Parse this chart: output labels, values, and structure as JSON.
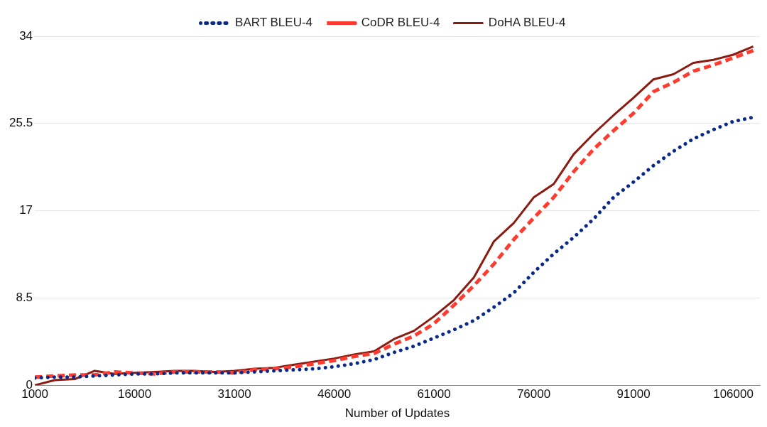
{
  "chart_data": {
    "type": "line",
    "xlabel": "Number of Updates",
    "x": [
      1000,
      4000,
      7000,
      10000,
      13000,
      16000,
      19000,
      22000,
      25000,
      28000,
      31000,
      34000,
      37000,
      40000,
      43000,
      46000,
      49000,
      52000,
      55000,
      58000,
      61000,
      64000,
      67000,
      70000,
      73000,
      76000,
      79000,
      82000,
      85000,
      88000,
      91000,
      94000,
      97000,
      100000,
      103000,
      106000,
      109000
    ],
    "series": [
      {
        "name": "BART BLEU-4",
        "color": "#0a2a8a",
        "line_style": "dotted",
        "values": [
          0.7,
          0.8,
          0.8,
          0.9,
          1.0,
          1.1,
          1.1,
          1.2,
          1.2,
          1.2,
          1.2,
          1.3,
          1.4,
          1.5,
          1.6,
          1.8,
          2.1,
          2.5,
          3.2,
          3.8,
          4.6,
          5.4,
          6.3,
          7.6,
          9.0,
          11.0,
          12.8,
          14.4,
          16.2,
          18.3,
          19.8,
          21.4,
          22.8,
          24.0,
          24.9,
          25.7,
          26.1
        ]
      },
      {
        "name": "CoDR BLEU-4",
        "color": "#ff3b30",
        "line_style": "dashed",
        "values": [
          0.8,
          0.9,
          1.0,
          1.0,
          1.3,
          1.2,
          1.1,
          1.3,
          1.3,
          1.3,
          1.2,
          1.5,
          1.6,
          1.8,
          2.1,
          2.4,
          2.8,
          3.1,
          4.0,
          4.8,
          6.0,
          7.8,
          9.7,
          11.8,
          14.2,
          16.3,
          18.3,
          20.8,
          23.0,
          24.8,
          26.5,
          28.6,
          29.5,
          30.6,
          31.2,
          31.9,
          32.6
        ]
      },
      {
        "name": "DoHA BLEU-4",
        "color": "#8b1a10",
        "line_style": "solid",
        "values": [
          0,
          0.5,
          0.6,
          1.4,
          1.1,
          1.2,
          1.3,
          1.4,
          1.4,
          1.3,
          1.4,
          1.6,
          1.7,
          2.0,
          2.3,
          2.6,
          3.0,
          3.3,
          4.5,
          5.3,
          6.7,
          8.3,
          10.5,
          14.0,
          15.8,
          18.3,
          19.6,
          22.5,
          24.5,
          26.3,
          28.0,
          29.8,
          30.3,
          31.4,
          31.7,
          32.2,
          33.0
        ]
      }
    ],
    "xlim": [
      1000,
      110000
    ],
    "xticks": [
      1000,
      16000,
      31000,
      46000,
      61000,
      76000,
      91000,
      106000
    ],
    "ylim": [
      0,
      34
    ],
    "yticks": [
      0,
      8.5,
      17,
      25.5,
      34
    ],
    "grid": "y",
    "legend": "top",
    "marker": "none"
  }
}
